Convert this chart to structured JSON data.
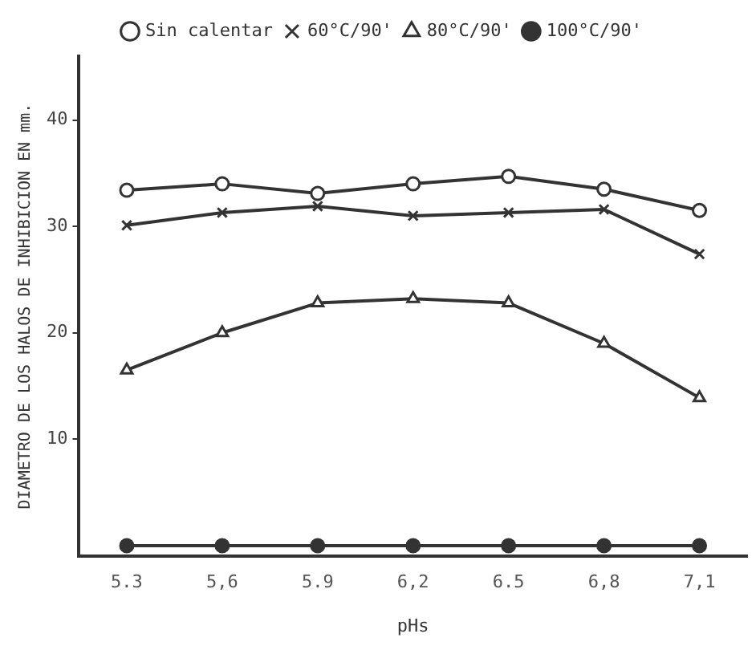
{
  "chart_data": {
    "type": "line",
    "xlabel": "pHs",
    "ylabel": "DIAMETRO DE LOS HALOS DE INHIBICION EN mm.",
    "categories": [
      "5.3",
      "5,6",
      "5.9",
      "6,2",
      "6.5",
      "6,8",
      "7,1"
    ],
    "series": [
      {
        "name": "Sin calentar",
        "color": "#333333",
        "marker": "circle",
        "values": [
          33.4,
          34.0,
          33.1,
          34.0,
          34.7,
          33.5,
          31.5
        ]
      },
      {
        "name": "60°C/90'",
        "color": "#333333",
        "marker": "cross",
        "values": [
          30.1,
          31.3,
          31.9,
          31.0,
          31.3,
          31.6,
          27.4
        ]
      },
      {
        "name": "80°C/90'",
        "color": "#333333",
        "marker": "triangle",
        "values": [
          16.5,
          20.0,
          22.8,
          23.2,
          22.8,
          19.0,
          13.9
        ]
      },
      {
        "name": "100°C/90'",
        "color": "#333333",
        "marker": "filled circle",
        "values": [
          0,
          0,
          0,
          0,
          0,
          0,
          0
        ]
      }
    ],
    "ylim": [
      -1,
      46
    ],
    "yticks": [
      10,
      20,
      30,
      40
    ],
    "grid": false,
    "legend": "top",
    "line_style": "solid"
  }
}
